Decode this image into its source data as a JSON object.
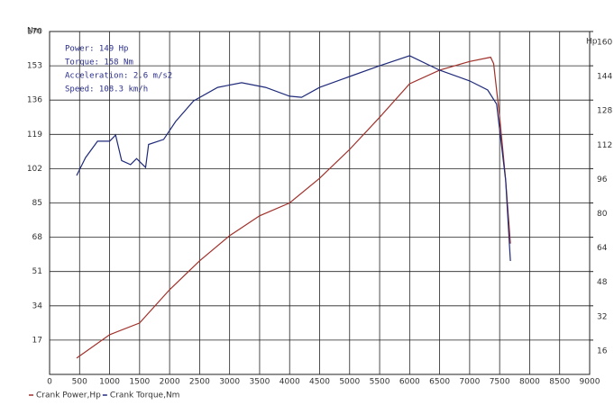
{
  "chart_data": {
    "type": "line",
    "y_label": "Nm",
    "y2_label": "Hp",
    "annotations": [
      "Power: 149 Hp",
      "Torque: 158 Nm",
      "Acceleration: 2.6 m/s2",
      "Speed: 108.3 km/h"
    ],
    "xlim": [
      0,
      9000
    ],
    "xticks": [
      0,
      500,
      1000,
      1500,
      2000,
      2500,
      3000,
      3500,
      4000,
      4500,
      5000,
      5500,
      6000,
      6500,
      7000,
      7500,
      8000,
      8500,
      9000
    ],
    "ylim": [
      0,
      170
    ],
    "yticks": [
      17,
      34,
      51,
      68,
      85,
      102,
      119,
      136,
      153,
      170
    ],
    "y2lim": [
      0,
      160
    ],
    "y2ticks": [
      16,
      32,
      48,
      64,
      80,
      96,
      112,
      128,
      144,
      160
    ],
    "grid": true,
    "series": [
      {
        "name": "Crank Power,Hp",
        "color": "#a0302a",
        "axis": "y2",
        "x": [
          450,
          1000,
          1500,
          2000,
          2500,
          3000,
          3500,
          4000,
          4500,
          5000,
          5500,
          6000,
          6500,
          7000,
          7350,
          7400,
          7500,
          7600,
          7680
        ],
        "values": [
          7.6,
          18.5,
          24,
          39.5,
          53,
          64.7,
          74,
          80,
          91.5,
          105,
          120,
          135.6,
          142,
          146,
          148,
          145,
          120,
          91,
          61
        ]
      },
      {
        "name": "Crank Torque,Nm",
        "color": "#1f2a7a",
        "x": [
          450,
          600,
          800,
          1000,
          1100,
          1200,
          1350,
          1450,
          1600,
          1650,
          1900,
          2100,
          2400,
          2800,
          3200,
          3600,
          4000,
          4200,
          4500,
          5000,
          5500,
          6000,
          6500,
          7000,
          7300,
          7450,
          7600,
          7680
        ],
        "values": [
          98.6,
          107.5,
          115.6,
          115.6,
          118.7,
          106,
          104,
          107,
          102.6,
          114,
          116.5,
          125.4,
          135.6,
          142.3,
          144.6,
          142.3,
          137.9,
          137.4,
          142.3,
          147.7,
          153,
          158,
          150.8,
          145.5,
          141,
          134,
          96.4,
          56.2
        ]
      }
    ]
  }
}
